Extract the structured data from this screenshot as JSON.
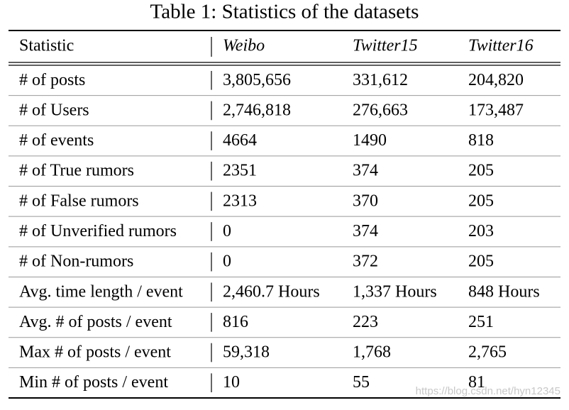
{
  "title": "Table 1: Statistics of the datasets",
  "table": {
    "header": [
      "Statistic",
      "Weibo",
      "Twitter15",
      "Twitter16"
    ],
    "rows": [
      [
        "# of posts",
        "3,805,656",
        "331,612",
        "204,820"
      ],
      [
        "# of Users",
        "2,746,818",
        "276,663",
        "173,487"
      ],
      [
        "# of events",
        "4664",
        "1490",
        "818"
      ],
      [
        "# of True rumors",
        "2351",
        "374",
        "205"
      ],
      [
        "# of False rumors",
        "2313",
        "370",
        "205"
      ],
      [
        "# of Unverified rumors",
        "0",
        "374",
        "203"
      ],
      [
        "# of Non-rumors",
        "0",
        "372",
        "205"
      ],
      [
        "Avg. time length / event",
        "2,460.7 Hours",
        "1,337 Hours",
        "848 Hours"
      ],
      [
        "Avg. # of posts / event",
        "816",
        "223",
        "251"
      ],
      [
        "Max # of posts / event",
        "59,318",
        "1,768",
        "2,765"
      ],
      [
        "Min # of posts / event",
        "10",
        "55",
        "81"
      ]
    ]
  },
  "watermark": "https://blog.csdn.net/hyn12345"
}
